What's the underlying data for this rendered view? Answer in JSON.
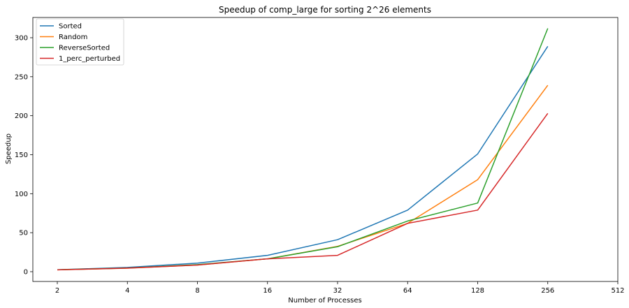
{
  "chart_data": {
    "type": "line",
    "title": "Speedup of comp_large for sorting 2^26 elements",
    "xlabel": "Number of Processes",
    "ylabel": "Speedup",
    "x_scale": "log2",
    "xlim": [
      2,
      512
    ],
    "ylim": [
      0,
      325
    ],
    "x_ticks": [
      2,
      4,
      8,
      16,
      32,
      64,
      128,
      256,
      512
    ],
    "y_ticks": [
      0,
      50,
      100,
      150,
      200,
      250,
      300
    ],
    "x": [
      2,
      4,
      8,
      16,
      32,
      64,
      128,
      256
    ],
    "legend_position": "top-left",
    "grid": false,
    "series": [
      {
        "name": "Sorted",
        "color": "#1f77b4",
        "values": [
          2.5,
          5.5,
          11,
          21,
          41,
          79,
          151,
          289
        ]
      },
      {
        "name": "Random",
        "color": "#ff7f0e",
        "values": [
          2.3,
          4.5,
          8.5,
          16.5,
          32.5,
          62,
          118,
          239
        ]
      },
      {
        "name": "ReverseSorted",
        "color": "#2ca02c",
        "values": [
          2.4,
          4.7,
          9,
          16.5,
          32,
          65,
          88,
          312
        ]
      },
      {
        "name": "1_perc_perturbed",
        "color": "#d62728",
        "values": [
          2.3,
          4.6,
          8.5,
          16.5,
          21,
          62,
          79,
          203
        ]
      }
    ]
  }
}
